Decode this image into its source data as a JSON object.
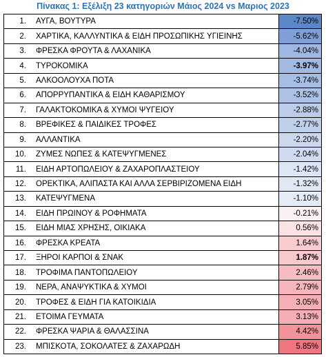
{
  "title": "Πίνακας 1: Εξέλιξη 23 κατηγοριών Μάιος 2024 vs Μαριος 2023",
  "rows": [
    {
      "num": "1.",
      "name": "ΑΥΓΑ, ΒΟΥΤΥΡΑ",
      "value": "-7.50%",
      "color": "#5b86c8",
      "bold": false
    },
    {
      "num": "2.",
      "name": "ΧΑΡΤΙΚΑ, ΚΑΛΛΥΝΤΙΚΑ & ΕΙΔΗ ΠΡΟΣΩΠΙΚΗΣ ΥΓΙΕΙΝΗΣ",
      "value": "-5.62%",
      "color": "#7f9fd6",
      "bold": false
    },
    {
      "num": "3.",
      "name": "ΦΡΕΣΚΑ ΦΡΟΥΤΑ & ΛΑΧΑΝΙΚΑ",
      "value": "-4.04%",
      "color": "#9fb8e1",
      "bold": false
    },
    {
      "num": "4.",
      "name": "ΤΥΡΟΚΟΜΙΚΑ",
      "value": "-3.97%",
      "color": "#a2bae2",
      "bold": true
    },
    {
      "num": "5.",
      "name": "ΑΛΚΟΟΛΟΥΧΑ ΠΟΤΑ",
      "value": "-3.74%",
      "color": "#a7bee4",
      "bold": false
    },
    {
      "num": "6.",
      "name": "ΑΠΟΡΡΥΠΑΝΤΙΚΑ & ΕΙΔΗ ΚΑΘΑΡΙΣΜΟΥ",
      "value": "-3.52%",
      "color": "#acc2e5",
      "bold": false
    },
    {
      "num": "7.",
      "name": "ΓΑΛΑΚΤΟΚΟΜΙΚΑ & ΧΥΜΟΙ ΨΥΓΕΙΟΥ",
      "value": "-2.88%",
      "color": "#bccdea",
      "bold": false
    },
    {
      "num": "8.",
      "name": "ΒΡΕΦΙΚΕΣ & ΠΑΙΔΙΚΕΣ ΤΡΟΦΕΣ",
      "value": "-2.77%",
      "color": "#bfd0eb",
      "bold": false
    },
    {
      "num": "9.",
      "name": "ΑΛΛΑΝΤΙΚΑ",
      "value": "-2.20%",
      "color": "#cbd9ef",
      "bold": false
    },
    {
      "num": "10.",
      "name": "ΖΥΜΕΣ ΝΩΠΕΣ & ΚΑΤΕΨΥΓΜΕΝΕΣ",
      "value": "-2.04%",
      "color": "#cfdbf0",
      "bold": false
    },
    {
      "num": "11.",
      "name": "ΕΙΔΗ ΑΡΤΟΠΩΛΕΙΟΥ & ΖΑΧΑΡΟΠΛΑΣΤΕΙΟΥ",
      "value": "-1.42%",
      "color": "#dde6f4",
      "bold": false
    },
    {
      "num": "12.",
      "name": "ΟΡΕΚΤΙΚΑ, ΑΛΙΠΑΣΤΑ ΚΑΙ ΑΛΛΑ ΣΕΡΒΙΡΙΖΟΜΕΝΑ ΕΙΔΗ",
      "value": "-1.32%",
      "color": "#e0e8f5",
      "bold": false
    },
    {
      "num": "13.",
      "name": "ΚΑΤΕΨΥΓΜΕΝΑ",
      "value": "-1.10%",
      "color": "#e5ecf7",
      "bold": false
    },
    {
      "num": "14.",
      "name": "ΕΙΔΗ ΠΡΩΙΝΟΥ & ΡΟΦΗΜΑΤΑ",
      "value": "-0.21%",
      "color": "#fbf0f2",
      "bold": false
    },
    {
      "num": "15.",
      "name": "ΕΙΔΗ ΜΙΑΣ ΧΡΗΣΗΣ, ΟΙΚΙΑΚΑ",
      "value": "0.56%",
      "color": "#fbe3e5",
      "bold": false
    },
    {
      "num": "16.",
      "name": "ΦΡΕΣΚΑ ΚΡΕΑΤΑ",
      "value": "1.64%",
      "color": "#f9cdd0",
      "bold": false
    },
    {
      "num": "17.",
      "name": "ΞΗΡΟΙ ΚΑΡΠΟΙ & ΣΝΑΚ",
      "value": "1.87%",
      "color": "#f8c8cc",
      "bold": true
    },
    {
      "num": "18.",
      "name": "ΤΡΟΦΙΜΑ ΠΑΝΤΟΠΩΛΕΙΟΥ",
      "value": "2.46%",
      "color": "#f7bcc0",
      "bold": false
    },
    {
      "num": "19.",
      "name": "ΝΕΡΑ, ΑΝΑΨΥΚΤΙΚΑ & ΧΥΜΟΙ",
      "value": "2.79%",
      "color": "#f6b5ba",
      "bold": false
    },
    {
      "num": "20.",
      "name": "ΤΡΟΦΕΣ & ΕΙΔΗ ΓΙΑ ΚΑΤΟΙΚΙΔΙΑ",
      "value": "3.05%",
      "color": "#f5b0b5",
      "bold": false
    },
    {
      "num": "21.",
      "name": "ΕΤΟΙΜΑ ΓΕΥΜΑΤΑ",
      "value": "3.13%",
      "color": "#f5aeb3",
      "bold": false
    },
    {
      "num": "22.",
      "name": "ΦΡΕΣΚΑ ΨΑΡΙΑ & ΘΑΛΑΣΣΙΝΑ",
      "value": "4.42%",
      "color": "#f2939a",
      "bold": false
    },
    {
      "num": "23.",
      "name": "ΜΠΙΣΚΟΤΑ, ΣΟΚΟΛΑΤΕΣ & ΖΑΧΑΡΩΔΗ",
      "value": "5.85%",
      "color": "#ef767e",
      "bold": false
    }
  ]
}
